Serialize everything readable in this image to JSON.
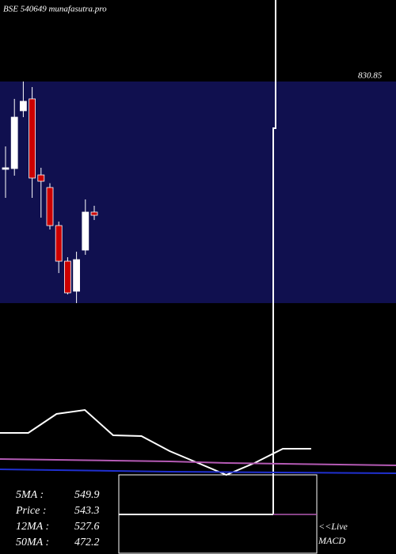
{
  "chart_data": [
    {
      "type": "candlestick",
      "title": "BSE 540649 munafasutra.pro",
      "annotation": "830.85",
      "open": [
        593.8,
        593.8,
        659.0,
        672.4,
        586.6,
        572.4,
        529.5,
        489.3,
        455.4,
        501.8,
        544.7
      ],
      "close": [
        594.7,
        651.8,
        669.7,
        583.1,
        579.5,
        529.5,
        489.3,
        453.6,
        491.1,
        544.7,
        541.1
      ],
      "high": [
        618.8,
        672.4,
        692.0,
        685.8,
        594.7,
        577.3,
        534.0,
        493.8,
        500.0,
        559.0,
        551.8
      ],
      "low": [
        560.8,
        585.8,
        651.8,
        560.8,
        538.4,
        525.0,
        475.9,
        451.8,
        442.0,
        496.5,
        535.8
      ],
      "up_color": "#ffffff",
      "down_color": "#cc0000",
      "band_color": "#10104f",
      "ylim": [
        442,
        692
      ]
    },
    {
      "type": "line",
      "xlim": [
        0,
        14
      ],
      "ylim": [
        0,
        100
      ],
      "series": [
        {
          "color": "#ffffff",
          "x": [
            0,
            1,
            2,
            3,
            4,
            5,
            6,
            7,
            8,
            9,
            10,
            11
          ],
          "values": [
            53,
            53,
            77,
            82,
            50,
            49,
            30,
            15,
            0,
            15,
            33,
            33
          ]
        },
        {
          "color": "#b45ab4",
          "x": [
            0,
            1,
            2,
            3,
            4,
            5,
            6,
            7,
            8,
            9,
            10,
            11,
            12,
            13,
            14
          ],
          "values": [
            20,
            19.5,
            19,
            18.5,
            18,
            17.5,
            17,
            16,
            15,
            14.5,
            14,
            13.5,
            13,
            12.5,
            12
          ]
        },
        {
          "color": "#2030d0",
          "x": [
            0,
            2,
            4,
            6,
            8,
            10,
            12,
            14
          ],
          "values": [
            7,
            6,
            5,
            4,
            3.5,
            3,
            2.5,
            2
          ]
        }
      ]
    }
  ],
  "indicators": [
    {
      "label": "5MA :",
      "value": 549.9
    },
    {
      "label": "Price   :",
      "value": 543.3
    },
    {
      "label": "12MA :",
      "value": 527.6
    },
    {
      "label": "50MA :",
      "value": 472.2
    }
  ],
  "macd_label": [
    "<<Live",
    "MACD"
  ]
}
